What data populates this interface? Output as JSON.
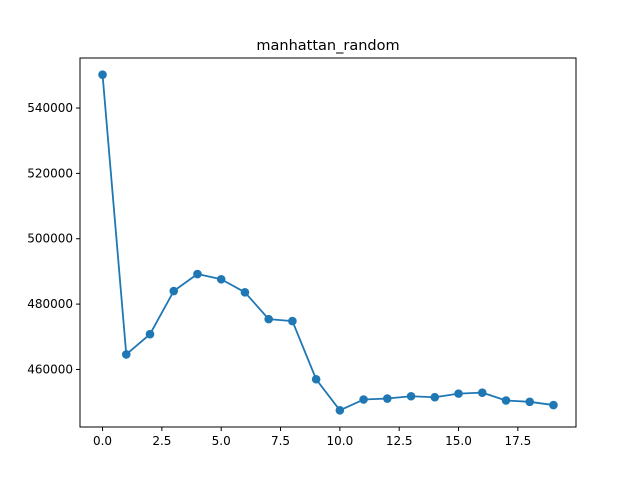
{
  "chart_data": {
    "type": "line",
    "title": "manhattan_random",
    "xlabel": "",
    "ylabel": "",
    "x": [
      0,
      1,
      2,
      3,
      4,
      5,
      6,
      7,
      8,
      9,
      10,
      11,
      12,
      13,
      14,
      15,
      16,
      17,
      18,
      19
    ],
    "series": [
      {
        "values": [
          550200,
          464600,
          470800,
          484000,
          489200,
          487600,
          483600,
          475400,
          474800,
          457000,
          447500,
          450800,
          451100,
          451800,
          451500,
          452600,
          452900,
          450500,
          450100,
          449100
        ],
        "color": "#1f77b4"
      }
    ],
    "xlim": [
      -0.95,
      19.95
    ],
    "ylim": [
      442390,
      555310
    ],
    "xticks": [
      0,
      2.5,
      5,
      7.5,
      10,
      12.5,
      15,
      17.5
    ],
    "xtick_labels": [
      "0.0",
      "2.5",
      "5.0",
      "7.5",
      "10.0",
      "12.5",
      "15.0",
      "17.5"
    ],
    "yticks": [
      460000,
      480000,
      500000,
      520000,
      540000
    ],
    "ytick_labels": [
      "460000",
      "480000",
      "500000",
      "520000",
      "540000"
    ],
    "grid": false,
    "legend": false
  }
}
